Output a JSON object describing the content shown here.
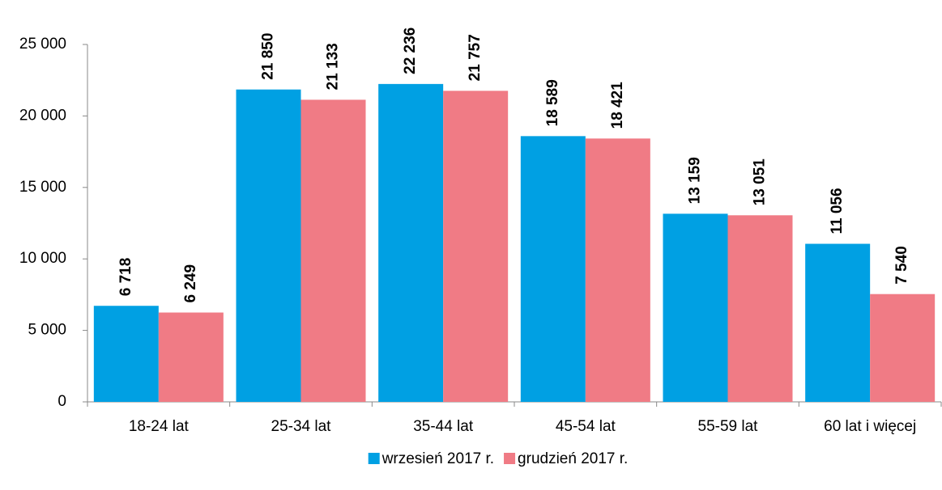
{
  "chart_data": {
    "type": "bar",
    "categories": [
      "18-24 lat",
      "25-34 lat",
      "35-44 lat",
      "45-54 lat",
      "55-59 lat",
      "60 lat i więcej"
    ],
    "series": [
      {
        "name": "wrzesień 2017 r.",
        "color": "#00a0e3",
        "values": [
          6718,
          21850,
          22236,
          18589,
          13159,
          11056
        ],
        "value_labels": [
          "6 718",
          "21 850",
          "22 236",
          "18 589",
          "13 159",
          "11 056"
        ]
      },
      {
        "name": "grudzień 2017 r.",
        "color": "#f07b85",
        "values": [
          6249,
          21133,
          21757,
          18421,
          13051,
          7540
        ],
        "value_labels": [
          "6 249",
          "21 133",
          "21 757",
          "18 421",
          "13 051",
          "7 540"
        ]
      }
    ],
    "ylim": [
      0,
      25000
    ],
    "yticks": [
      0,
      {
        "value": 5000,
        "label": "5 000"
      },
      {
        "value": 10000,
        "label": "10 000"
      },
      {
        "value": 15000,
        "label": "15 000"
      },
      {
        "value": 20000,
        "label": "20 000"
      },
      {
        "value": 25000,
        "label": "25 000"
      }
    ],
    "grid": false,
    "legend": "bottom"
  }
}
